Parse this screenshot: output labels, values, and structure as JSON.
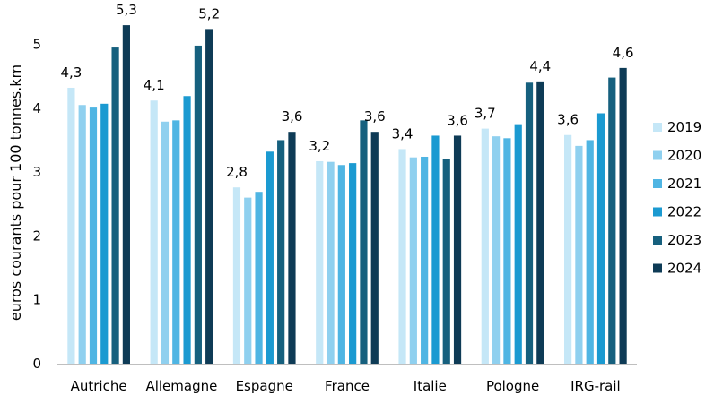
{
  "chart_data": {
    "type": "bar",
    "title": "",
    "xlabel": "",
    "ylabel": "euros courants pour 100 tonnes.km",
    "ylim": [
      0,
      5.5
    ],
    "yticks": [
      0,
      1,
      2,
      3,
      4,
      5
    ],
    "grid": false,
    "legend_position": "right",
    "categories": [
      "Autriche",
      "Allemagne",
      "Espagne",
      "France",
      "Italie",
      "Pologne",
      "IRG-rail"
    ],
    "series": [
      {
        "name": "2019",
        "color": "#c5e7f7",
        "values": [
          4.32,
          4.12,
          2.76,
          3.17,
          3.36,
          3.68,
          3.58
        ]
      },
      {
        "name": "2020",
        "color": "#8fd0ef",
        "values": [
          4.05,
          3.79,
          2.6,
          3.16,
          3.23,
          3.56,
          3.41
        ]
      },
      {
        "name": "2021",
        "color": "#4fb5e3",
        "values": [
          4.01,
          3.81,
          2.69,
          3.11,
          3.24,
          3.53,
          3.5
        ]
      },
      {
        "name": "2022",
        "color": "#1b9ad1",
        "values": [
          4.07,
          4.19,
          3.32,
          3.14,
          3.57,
          3.75,
          3.92
        ]
      },
      {
        "name": "2023",
        "color": "#16607e",
        "values": [
          4.95,
          4.98,
          3.5,
          3.81,
          3.2,
          4.4,
          4.48
        ]
      },
      {
        "name": "2024",
        "color": "#0e3b56",
        "values": [
          5.3,
          5.24,
          3.63,
          3.63,
          3.57,
          4.42,
          4.63
        ]
      }
    ],
    "data_labels": [
      {
        "category": "Autriche",
        "series": "2019",
        "text": "4,3"
      },
      {
        "category": "Autriche",
        "series": "2024",
        "text": "5,3"
      },
      {
        "category": "Allemagne",
        "series": "2019",
        "text": "4,1"
      },
      {
        "category": "Allemagne",
        "series": "2024",
        "text": "5,2"
      },
      {
        "category": "Espagne",
        "series": "2019",
        "text": "2,8"
      },
      {
        "category": "Espagne",
        "series": "2024",
        "text": "3,6"
      },
      {
        "category": "France",
        "series": "2019",
        "text": "3,2"
      },
      {
        "category": "France",
        "series": "2024",
        "text": "3,6"
      },
      {
        "category": "Italie",
        "series": "2019",
        "text": "3,4"
      },
      {
        "category": "Italie",
        "series": "2024",
        "text": "3,6"
      },
      {
        "category": "Pologne",
        "series": "2019",
        "text": "3,7"
      },
      {
        "category": "Pologne",
        "series": "2024",
        "text": "4,4"
      },
      {
        "category": "IRG-rail",
        "series": "2019",
        "text": "3,6"
      },
      {
        "category": "IRG-rail",
        "series": "2024",
        "text": "4,6"
      }
    ]
  }
}
